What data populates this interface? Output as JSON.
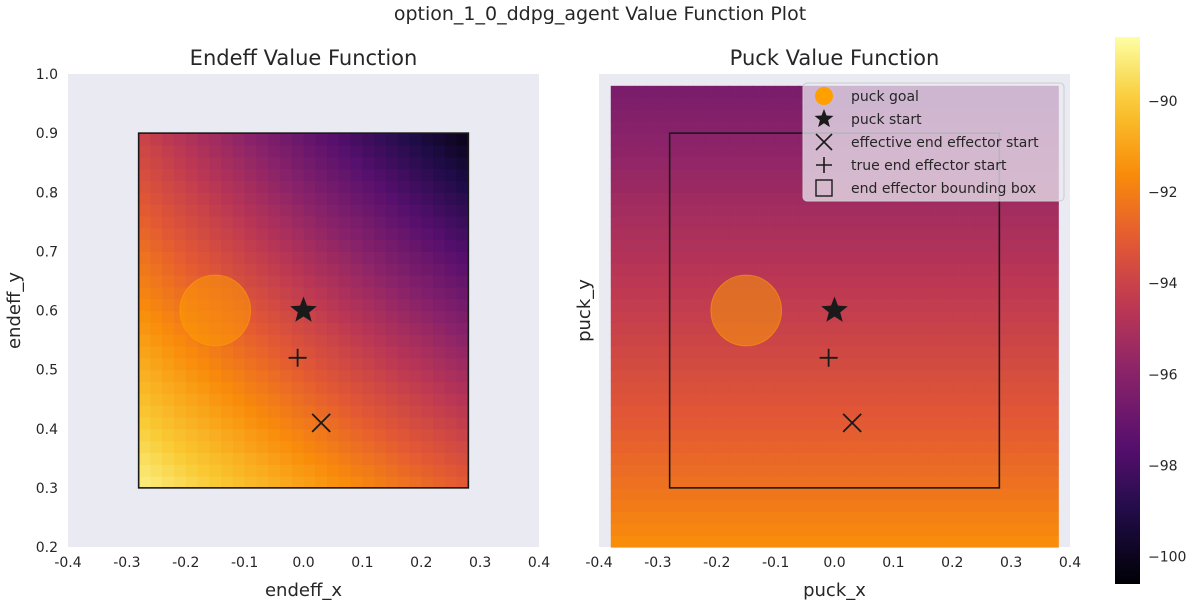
{
  "figure": {
    "suptitle": "option_1_0_ddpg_agent Value Function Plot"
  },
  "chart_data": [
    {
      "type": "heatmap",
      "title": "Endeff Value Function",
      "xlabel": "endeff_x",
      "ylabel": "endeff_y",
      "xlim": [
        -0.4,
        0.4
      ],
      "ylim": [
        0.2,
        1.0
      ],
      "xticks": [
        "-0.4",
        "-0.3",
        "-0.2",
        "-0.1",
        "0.0",
        "0.1",
        "0.2",
        "0.3",
        "0.4"
      ],
      "yticks": [
        "0.2",
        "0.3",
        "0.4",
        "0.5",
        "0.6",
        "0.7",
        "0.8",
        "0.9",
        "1.0"
      ],
      "grid": false,
      "heatmap_extent": {
        "x": [
          -0.28,
          0.28
        ],
        "y": [
          0.3,
          0.9
        ]
      },
      "heatmap_grid": [
        28,
        30
      ],
      "value_model": {
        "description_values_at_corners": true,
        "bottom_left": -89.0,
        "bottom_right": -93.0,
        "top_left": -94.0,
        "top_right": -100.2,
        "bottom_center": -91.0
      },
      "markers": {
        "puck_goal": {
          "x": -0.15,
          "y": 0.6,
          "radius": 0.06,
          "color": "#ffa000"
        },
        "puck_start": {
          "x": 0.0,
          "y": 0.6
        },
        "effective_end_effector_start": {
          "x": 0.03,
          "y": 0.41
        },
        "true_end_effector_start": {
          "x": -0.01,
          "y": 0.52
        }
      },
      "bounding_box": {
        "x": [
          -0.28,
          0.28
        ],
        "y": [
          0.3,
          0.9
        ]
      }
    },
    {
      "type": "heatmap",
      "title": "Puck Value Function",
      "xlabel": "puck_x",
      "ylabel": "puck_y",
      "xlim": [
        -0.4,
        0.4
      ],
      "ylim": [
        0.2,
        1.0
      ],
      "xticks": [
        "-0.4",
        "-0.3",
        "-0.2",
        "-0.1",
        "0.0",
        "0.1",
        "0.2",
        "0.3",
        "0.4"
      ],
      "yticks": [],
      "grid": false,
      "heatmap_extent": {
        "x": [
          -0.38,
          0.38
        ],
        "y": [
          0.2,
          0.98
        ]
      },
      "heatmap_grid": [
        38,
        39
      ],
      "value_model": {
        "bottom": -91.5,
        "top": -96.5
      },
      "markers": {
        "puck_goal": {
          "x": -0.15,
          "y": 0.6,
          "radius": 0.06,
          "color": "#ffa000"
        },
        "puck_start": {
          "x": 0.0,
          "y": 0.6
        },
        "effective_end_effector_start": {
          "x": 0.03,
          "y": 0.41
        },
        "true_end_effector_start": {
          "x": -0.01,
          "y": 0.52
        }
      },
      "bounding_box": {
        "x": [
          -0.28,
          0.28
        ],
        "y": [
          0.3,
          0.9
        ]
      },
      "legend": {
        "position": "top-right",
        "entries": [
          {
            "label": "puck goal",
            "marker": "circle"
          },
          {
            "label": "puck start",
            "marker": "star"
          },
          {
            "label": "effective end effector start",
            "marker": "x"
          },
          {
            "label": "true end effector start",
            "marker": "plus"
          },
          {
            "label": "end effector bounding box",
            "marker": "square"
          }
        ]
      }
    }
  ],
  "colorbar": {
    "cmap": "inferno",
    "vmin": -100.6,
    "vmax": -88.6,
    "ticks": [
      -100,
      -98,
      -96,
      -94,
      -92,
      -90
    ],
    "tick_labels": [
      "−100",
      "−98",
      "−96",
      "−94",
      "−92",
      "−90"
    ]
  },
  "colors": {
    "axes_bg": "#eaeaf2",
    "marker_dark": "#1a1a1a",
    "goal": "#ffa000"
  }
}
